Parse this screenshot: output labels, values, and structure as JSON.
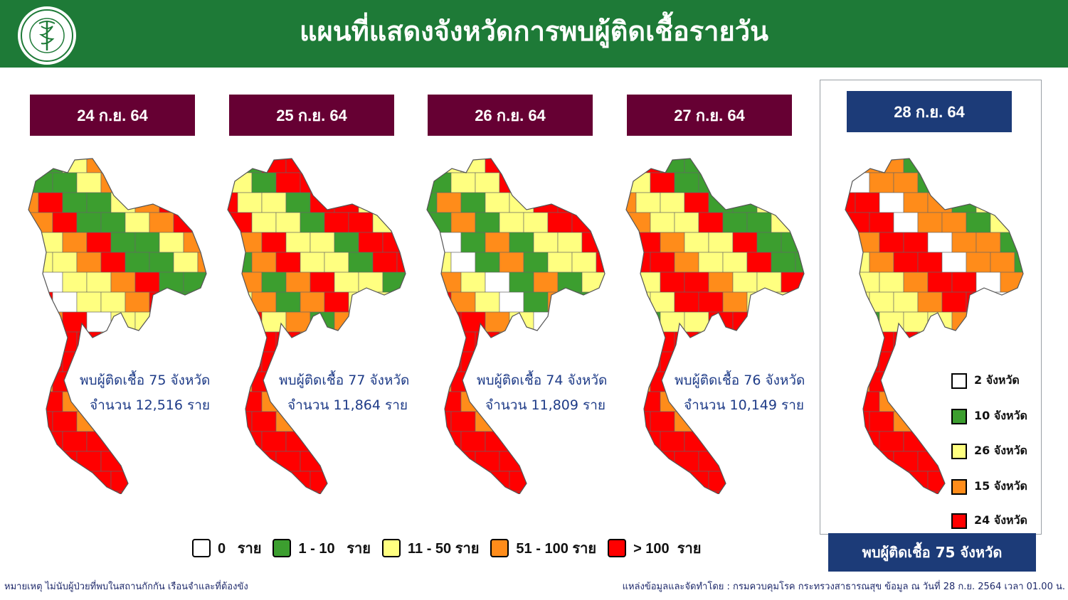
{
  "header": {
    "title": "แผนที่แสดงจังหวัดการพบผู้ติดเชื้อรายวัน",
    "logo_caption": "MINISTRY OF PUBLIC HEALTH",
    "bg_color": "#1e7a37"
  },
  "days": [
    {
      "date": "24 ก.ย. 64",
      "provinces_line": "พบผู้ติดเชื้อ 75 จังหวัด",
      "count_line": "จำนวน 12,516 ราย",
      "box_color": "#660033"
    },
    {
      "date": "25 ก.ย. 64",
      "provinces_line": "พบผู้ติดเชื้อ 77 จังหวัด",
      "count_line": "จำนวน 11,864 ราย",
      "box_color": "#660033"
    },
    {
      "date": "26 ก.ย. 64",
      "provinces_line": "พบผู้ติดเชื้อ 74 จังหวัด",
      "count_line": "จำนวน 11,809 ราย",
      "box_color": "#660033"
    },
    {
      "date": "27 ก.ย. 64",
      "provinces_line": "พบผู้ติดเชื้อ 76 จังหวัด",
      "count_line": "จำนวน 10,149 ราย",
      "box_color": "#660033"
    }
  ],
  "current": {
    "date": "28 ก.ย. 64",
    "box_color": "#1c3b78",
    "summary": "พบผู้ติดเชื้อ 75 จังหวัด",
    "legend": [
      {
        "label": "2 จังหวัด",
        "color": "#ffffff"
      },
      {
        "label": "10 จังหวัด",
        "color": "#3c9e2f"
      },
      {
        "label": "26 จังหวัด",
        "color": "#ffff80"
      },
      {
        "label": "15 จังหวัด",
        "color": "#ff8c1a"
      },
      {
        "label": "24 จังหวัด",
        "color": "#ff0000"
      }
    ]
  },
  "legend": [
    {
      "label": "0   ราย",
      "color": "#ffffff"
    },
    {
      "label": "1 - 10   ราย",
      "color": "#3c9e2f"
    },
    {
      "label": "11 - 50 ราย",
      "color": "#ffff80"
    },
    {
      "label": "51 - 100 ราย",
      "color": "#ff8c1a"
    },
    {
      "label": "> 100  ราย",
      "color": "#ff0000"
    }
  ],
  "footer": {
    "note": "หมายเหตุ ไม่นับผู้ป่วยที่พบในสถานกักกัน เรือนจำและที่ต้องขัง",
    "source": "แหล่งข้อมูลและจัดทำโดย : กรมควบคุมโรค กระทรวงสาธารณสุข ข้อมูล ณ วันที่ 28 ก.ย. 2564 เวลา 01.00 น."
  }
}
